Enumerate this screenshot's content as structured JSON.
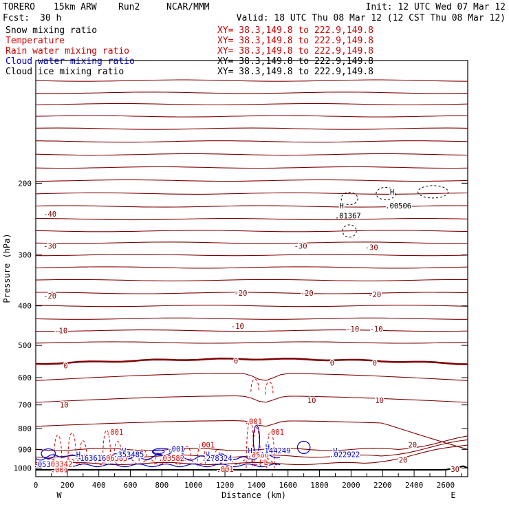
{
  "header": {
    "model": "TORERO",
    "config": "15km ARW",
    "run": "Run2",
    "org": "NCAR/MMM",
    "init": "Init: 12 UTC Wed 07 Mar 12",
    "fcst_label": "Fcst:",
    "fcst_value": "30 h",
    "valid": "Valid: 18 UTC Thu 08 Mar 12 (12 CST Thu 08 Mar 12)"
  },
  "legend": [
    {
      "label": "Snow mixing ratio",
      "color": "#000000",
      "xy": "XY=  38.3,149.8 to 222.9,149.8",
      "xy_color": "#cc0000"
    },
    {
      "label": "Temperature",
      "color": "#cc0000",
      "xy": "XY=  38.3,149.8 to 222.9,149.8",
      "xy_color": "#cc0000"
    },
    {
      "label": "Rain water mixing ratio",
      "color": "#cc0000",
      "xy": "XY=  38.3,149.8 to 222.9,149.8",
      "xy_color": "#cc0000"
    },
    {
      "label": "Cloud water mixing ratio",
      "color": "#0000cc",
      "xy": "XY=  38.3,149.8 to 222.9,149.8",
      "xy_color": "#000000"
    },
    {
      "label": "Cloud ice mixing ratio",
      "color": "#000000",
      "xy": "XY=  38.3,149.8 to 222.9,149.8",
      "xy_color": "#000000"
    }
  ],
  "chart_data": {
    "type": "contour-cross-section",
    "ylabel": "Pressure (hPa)",
    "xlabel": "Distance (km)",
    "y_scale": "log",
    "ylim": [
      1050,
      100
    ],
    "xlim": [
      0,
      2740
    ],
    "y_ticks": [
      200,
      300,
      400,
      500,
      600,
      700,
      800,
      900,
      1000
    ],
    "x_ticks": [
      0,
      200,
      400,
      600,
      800,
      1000,
      1200,
      1400,
      1600,
      1800,
      2000,
      2200,
      2400,
      2600
    ],
    "left_end_label": "W",
    "right_end_label": "E",
    "colors": {
      "temperature": "#800000",
      "rain": "#dd0000",
      "cloud_water": "#0000cc",
      "ice": "#000000",
      "terrain": "#000000"
    },
    "temperature_labels": [
      {
        "text": "-40",
        "x": 90,
        "p": 238
      },
      {
        "text": "-30",
        "x": 90,
        "p": 285
      },
      {
        "text": "-30",
        "x": 1680,
        "p": 285
      },
      {
        "text": "-30",
        "x": 2130,
        "p": 287
      },
      {
        "text": "-20",
        "x": 90,
        "p": 378
      },
      {
        "text": "-20",
        "x": 1300,
        "p": 372
      },
      {
        "text": "-20",
        "x": 1720,
        "p": 372
      },
      {
        "text": "-20",
        "x": 2150,
        "p": 375
      },
      {
        "text": "-10",
        "x": 160,
        "p": 460
      },
      {
        "text": "-10",
        "x": 1280,
        "p": 448
      },
      {
        "text": "-10",
        "x": 2010,
        "p": 455
      },
      {
        "text": "-10",
        "x": 2160,
        "p": 455
      },
      {
        "text": "0",
        "x": 190,
        "p": 560
      },
      {
        "text": "0",
        "x": 1270,
        "p": 545
      },
      {
        "text": "0",
        "x": 1880,
        "p": 552
      },
      {
        "text": "0",
        "x": 2150,
        "p": 552
      },
      {
        "text": "10",
        "x": 180,
        "p": 700
      },
      {
        "text": "10",
        "x": 1750,
        "p": 682
      },
      {
        "text": "10",
        "x": 2180,
        "p": 682
      },
      {
        "text": "20",
        "x": 2390,
        "p": 877
      },
      {
        "text": "20",
        "x": 2330,
        "p": 955
      },
      {
        "text": "30",
        "x": 2660,
        "p": 1006
      }
    ],
    "rain_labels": [
      {
        "text": ".001",
        "x": 500,
        "p": 815
      },
      {
        "text": ".001",
        "x": 1080,
        "p": 877
      },
      {
        "text": ".001",
        "x": 1380,
        "p": 768
      },
      {
        "text": ".001",
        "x": 1520,
        "p": 815
      },
      {
        "text": ".001",
        "x": 150,
        "p": 1008
      },
      {
        "text": ".001",
        "x": 1200,
        "p": 1007
      },
      {
        "text": ".06585",
        "x": 500,
        "p": 946
      },
      {
        "text": ".03342",
        "x": 150,
        "p": 978
      },
      {
        "text": ".03582",
        "x": 860,
        "p": 946
      },
      {
        "text": ".0586",
        "x": 1410,
        "p": 927
      },
      {
        "text": "L",
        "x": 1460,
        "p": 968
      }
    ],
    "cloud_labels": [
      {
        "text": "H",
        "x": 270,
        "p": 925
      },
      {
        "text": "H",
        "x": 560,
        "p": 905
      },
      {
        "text": "H",
        "x": 1360,
        "p": 905
      },
      {
        "text": "H",
        "x": 1470,
        "p": 886
      },
      {
        "text": "H",
        "x": 1900,
        "p": 905
      },
      {
        "text": "H",
        "x": 1090,
        "p": 925
      },
      {
        "text": ".353485",
        "x": 590,
        "p": 925
      },
      {
        "text": ".163616",
        "x": 350,
        "p": 945
      },
      {
        "text": ".278324",
        "x": 1150,
        "p": 945
      },
      {
        "text": ".144249",
        "x": 1520,
        "p": 905
      },
      {
        "text": ".022922",
        "x": 1960,
        "p": 925
      },
      {
        "text": ".053",
        "x": 40,
        "p": 980
      },
      {
        "text": ".001",
        "x": 890,
        "p": 897
      }
    ],
    "ice_labels": [
      {
        "text": "H",
        "x": 1940,
        "p": 227
      },
      {
        "text": ".01367",
        "x": 1980,
        "p": 240
      },
      {
        "text": "H",
        "x": 2260,
        "p": 210
      },
      {
        "text": ".00506",
        "x": 2300,
        "p": 227
      }
    ]
  }
}
